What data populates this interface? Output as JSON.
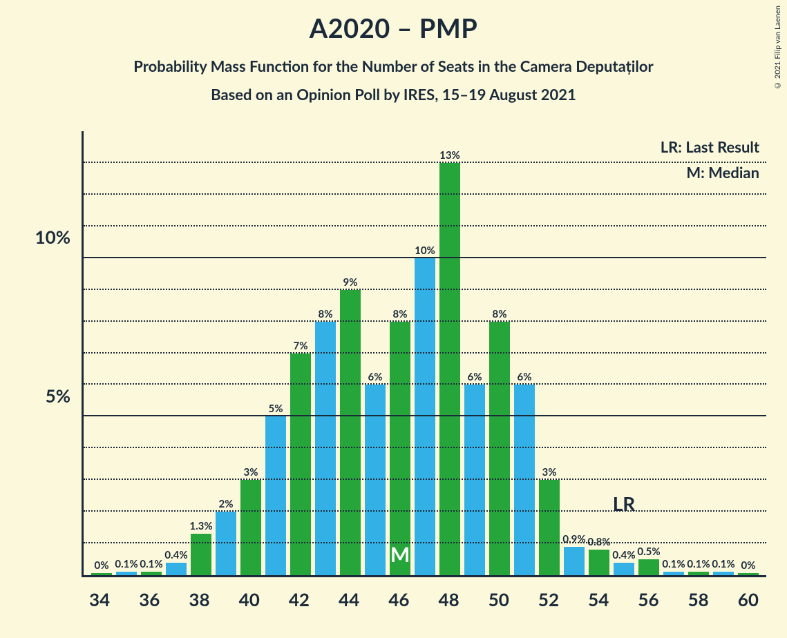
{
  "title": "A2020 – PMP",
  "subtitle": "Probability Mass Function for the Number of Seats in the Camera Deputaților",
  "subtitle2": "Based on an Opinion Poll by IRES, 15–19 August 2021",
  "copyright": "© 2021 Filip van Laenen",
  "legend": {
    "lr": "LR: Last Result",
    "m": "M: Median"
  },
  "chart": {
    "type": "bar",
    "background_color": "#fcf8db",
    "text_color": "#1a2a3a",
    "axis_color": "#1a2a3a",
    "grid_solid_color": "#1a2a3a",
    "grid_dot_color": "#1a2a3a",
    "title_fontsize": 38,
    "subtitle_fontsize": 22,
    "axis_label_fontsize": 26,
    "bar_label_fontsize": 15,
    "legend_fontsize": 22,
    "y_max_percent": 14,
    "y_ticks_major": [
      5,
      10
    ],
    "y_ticks_minor": [
      1,
      2,
      3,
      4,
      6,
      7,
      8,
      9,
      11,
      12,
      13
    ],
    "x_ticks": [
      34,
      36,
      38,
      40,
      42,
      44,
      46,
      48,
      50,
      52,
      54,
      56,
      58,
      60
    ],
    "colors": {
      "green": "#26a63a",
      "blue": "#33b1e6"
    },
    "median_index": 12,
    "median_label": "M",
    "lr_label": "LR",
    "lr_x_position": 55,
    "bars": [
      {
        "x": 34,
        "color": "green",
        "pct": 0,
        "label": "0%"
      },
      {
        "x": 35,
        "color": "blue",
        "pct": 0.1,
        "label": "0.1%"
      },
      {
        "x": 36,
        "color": "green",
        "pct": 0.1,
        "label": "0.1%"
      },
      {
        "x": 37,
        "color": "blue",
        "pct": 0.4,
        "label": "0.4%"
      },
      {
        "x": 38,
        "color": "green",
        "pct": 1.3,
        "label": "1.3%"
      },
      {
        "x": 39,
        "color": "blue",
        "pct": 2,
        "label": "2%"
      },
      {
        "x": 40,
        "color": "green",
        "pct": 3,
        "label": "3%"
      },
      {
        "x": 41,
        "color": "blue",
        "pct": 5,
        "label": "5%"
      },
      {
        "x": 42,
        "color": "green",
        "pct": 7,
        "label": "7%"
      },
      {
        "x": 43,
        "color": "blue",
        "pct": 8,
        "label": "8%"
      },
      {
        "x": 44,
        "color": "green",
        "pct": 9,
        "label": "9%"
      },
      {
        "x": 45,
        "color": "blue",
        "pct": 6,
        "label": "6%"
      },
      {
        "x": 46,
        "color": "green",
        "pct": 8,
        "label": "8%"
      },
      {
        "x": 47,
        "color": "blue",
        "pct": 10,
        "label": "10%"
      },
      {
        "x": 48,
        "color": "green",
        "pct": 13,
        "label": "13%"
      },
      {
        "x": 49,
        "color": "blue",
        "pct": 6,
        "label": "6%"
      },
      {
        "x": 50,
        "color": "green",
        "pct": 8,
        "label": "8%"
      },
      {
        "x": 51,
        "color": "blue",
        "pct": 6,
        "label": "6%"
      },
      {
        "x": 52,
        "color": "green",
        "pct": 3,
        "label": "3%"
      },
      {
        "x": 53,
        "color": "blue",
        "pct": 0.9,
        "label": "0.9%"
      },
      {
        "x": 54,
        "color": "green",
        "pct": 0.8,
        "label": "0.8%"
      },
      {
        "x": 55,
        "color": "blue",
        "pct": 0.4,
        "label": "0.4%"
      },
      {
        "x": 56,
        "color": "green",
        "pct": 0.5,
        "label": "0.5%"
      },
      {
        "x": 57,
        "color": "blue",
        "pct": 0.1,
        "label": "0.1%"
      },
      {
        "x": 58,
        "color": "green",
        "pct": 0.1,
        "label": "0.1%"
      },
      {
        "x": 59,
        "color": "blue",
        "pct": 0.1,
        "label": "0.1%"
      },
      {
        "x": 60,
        "color": "green",
        "pct": 0,
        "label": "0%"
      }
    ]
  }
}
